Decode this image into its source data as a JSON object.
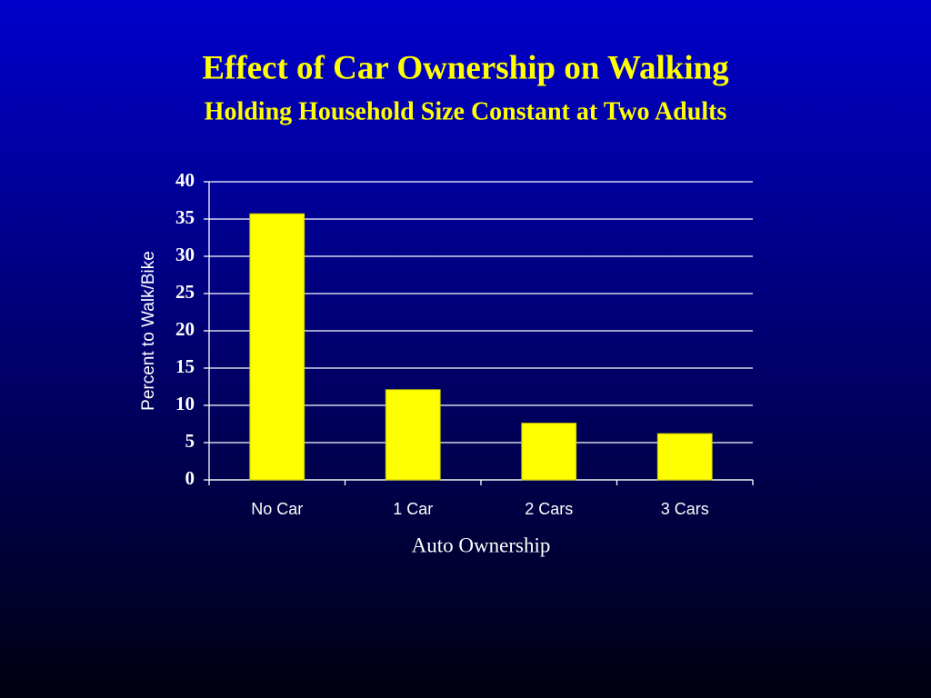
{
  "chart_data": {
    "type": "bar",
    "title": "Effect of Car Ownership on Walking",
    "subtitle": "Holding Household Size Constant at Two Adults",
    "x_label": "Auto Ownership",
    "y_label": "Percent to Walk/Bike",
    "categories": [
      "No Car",
      "1 Car",
      "2 Cars",
      "3 Cars"
    ],
    "values": [
      35.7,
      12.1,
      7.6,
      6.2
    ],
    "color": "#ffff00",
    "ylim": [
      0,
      40
    ],
    "yticks": [
      0,
      5,
      10,
      15,
      20,
      25,
      30,
      35,
      40
    ],
    "grid": true
  }
}
